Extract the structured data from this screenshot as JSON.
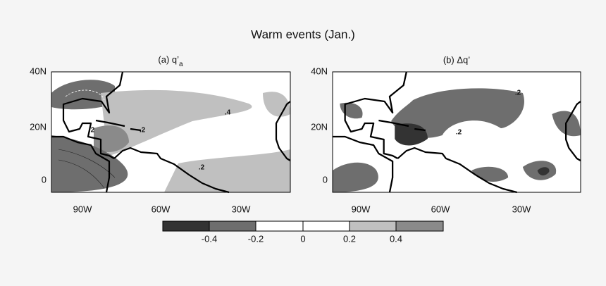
{
  "title": "Warm events (Jan.)",
  "panels": [
    {
      "title": "(a) q’",
      "title_subscript": "a",
      "contour_labels": [
        ".4",
        ".2",
        ".2",
        ".2"
      ]
    },
    {
      "title": "(b) Δq’",
      "contour_labels": [
        ".2",
        ".2"
      ]
    }
  ],
  "y_ticks": [
    "40N",
    "20N",
    "0"
  ],
  "x_ticks": [
    "90W",
    "60W",
    "30W"
  ],
  "colorbar": {
    "labels": [
      "-0.4",
      "-0.2",
      "0",
      "0.2",
      "0.4"
    ]
  }
}
